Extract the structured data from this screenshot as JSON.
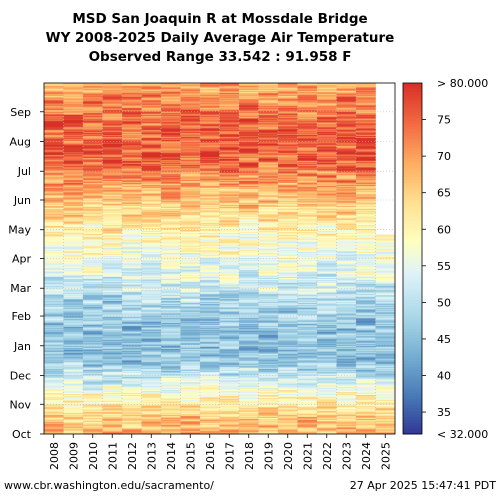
{
  "titles": {
    "line1": "MSD San Joaquin R at Mossdale Bridge",
    "line2": "WY 2008-2025 Daily Average Air Temperature",
    "line3": "Observed Range 33.542 : 91.958 F"
  },
  "footer": {
    "left": "www.cbr.washington.edu/sacramento/",
    "right": "27 Apr 2025 15:47:41 PDT"
  },
  "chart_data": {
    "type": "heatmap",
    "x_categories": [
      "2008",
      "2009",
      "2010",
      "2011",
      "2012",
      "2013",
      "2014",
      "2015",
      "2016",
      "2017",
      "2018",
      "2019",
      "2020",
      "2021",
      "2022",
      "2023",
      "2024",
      "2025"
    ],
    "y_ticks": [
      "Oct",
      "Nov",
      "Dec",
      "Jan",
      "Feb",
      "Mar",
      "Apr",
      "May",
      "Jun",
      "Jul",
      "Aug",
      "Sep"
    ],
    "colorbar": {
      "min": 32,
      "max": 80,
      "min_label": "< 32.000",
      "max_label": "> 80.000",
      "ticks": [
        "35",
        "40",
        "45",
        "50",
        "55",
        "60",
        "65",
        "70",
        "75"
      ]
    },
    "value_range": [
      33.542,
      91.958
    ],
    "monthly_mean_F": [
      66,
      57,
      46,
      45,
      49,
      54,
      58,
      63,
      70,
      76,
      75,
      71
    ],
    "data_start": "2007-10-01",
    "data_end": "2025-04-26",
    "missing_before": "2008-06-01",
    "colors": {
      "cold": "#4575b4",
      "mid": "#ffffbf",
      "warm": "#d73027",
      "grid": "#cccccc"
    }
  }
}
